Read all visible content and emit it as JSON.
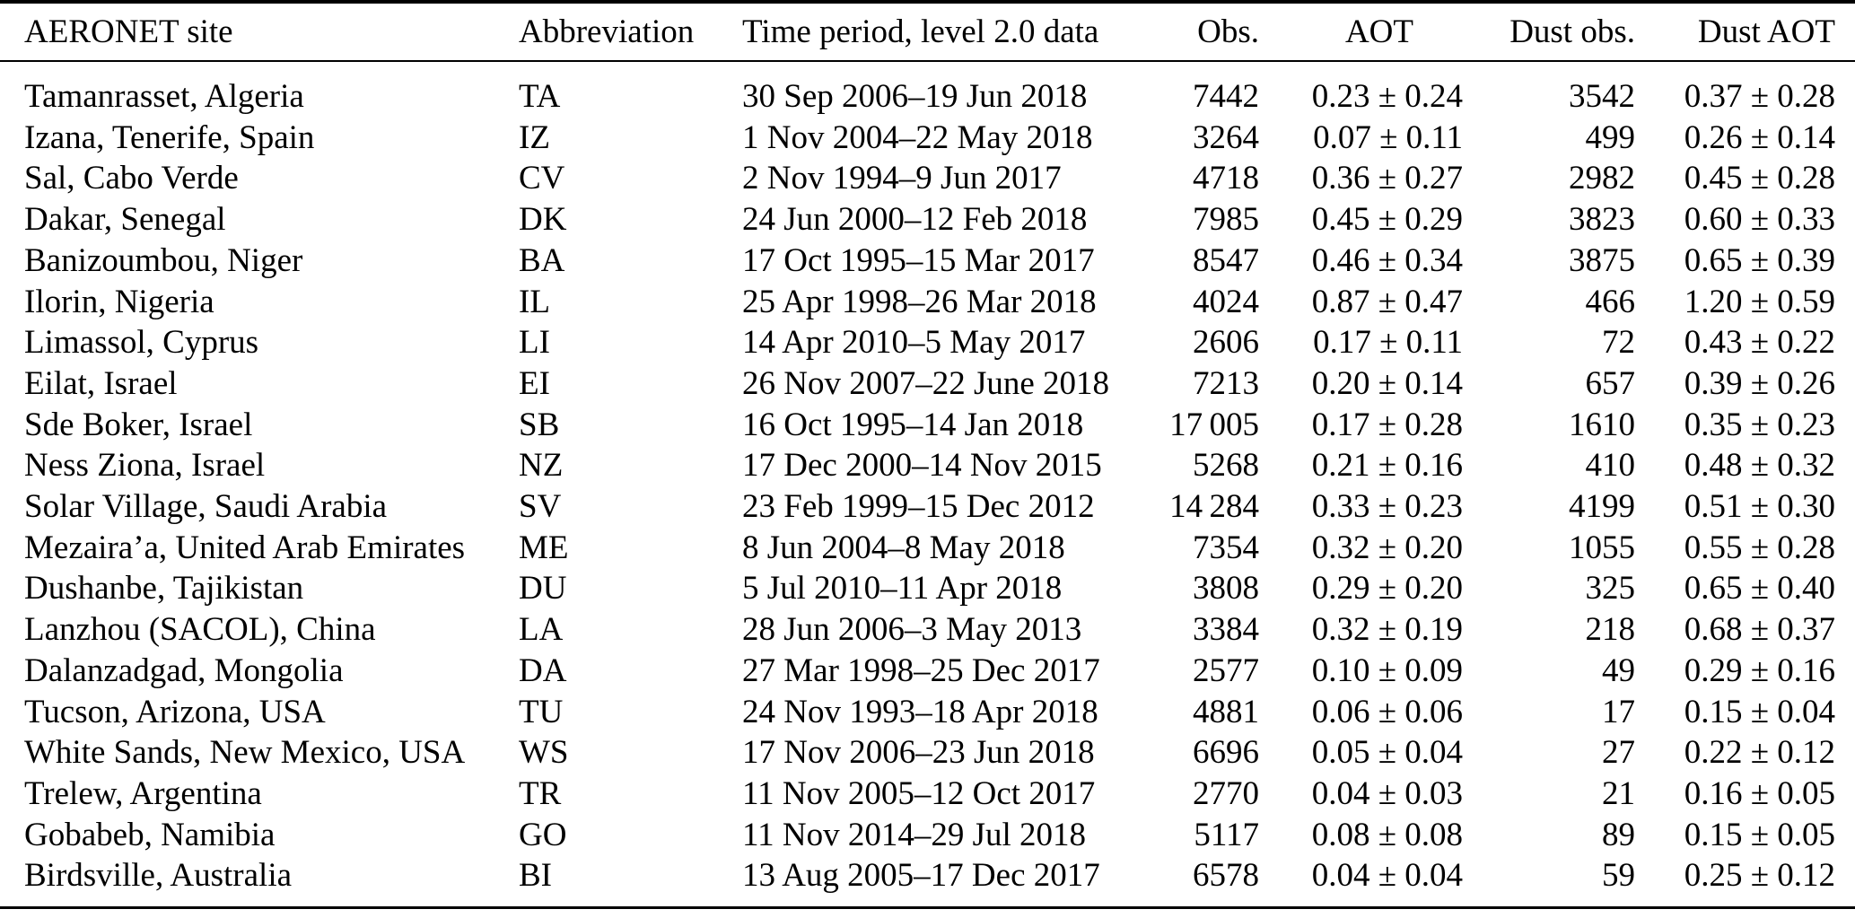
{
  "table": {
    "columns": [
      {
        "key": "site",
        "label": "AERONET site"
      },
      {
        "key": "abbreviation",
        "label": "Abbreviation"
      },
      {
        "key": "time-period",
        "label": "Time period, level 2.0 data"
      },
      {
        "key": "obs",
        "label": "Obs."
      },
      {
        "key": "aot",
        "label": "AOT"
      },
      {
        "key": "dust-obs",
        "label": "Dust obs."
      },
      {
        "key": "dust-aot",
        "label": "Dust AOT"
      }
    ],
    "rows": [
      [
        "Tamanrasset, Algeria",
        "TA",
        "30 Sep 2006–19 Jun 2018",
        "7442",
        "0.23 ± 0.24",
        "3542",
        "0.37 ± 0.28"
      ],
      [
        "Izana, Tenerife, Spain",
        "IZ",
        "1 Nov 2004–22 May 2018",
        "3264",
        "0.07 ± 0.11",
        "499",
        "0.26 ± 0.14"
      ],
      [
        "Sal, Cabo Verde",
        "CV",
        "2 Nov 1994–9 Jun 2017",
        "4718",
        "0.36 ± 0.27",
        "2982",
        "0.45 ± 0.28"
      ],
      [
        "Dakar, Senegal",
        "DK",
        "24 Jun 2000–12 Feb 2018",
        "7985",
        "0.45 ± 0.29",
        "3823",
        "0.60 ± 0.33"
      ],
      [
        "Banizoumbou, Niger",
        "BA",
        "17 Oct 1995–15 Mar 2017",
        "8547",
        "0.46 ± 0.34",
        "3875",
        "0.65 ± 0.39"
      ],
      [
        "Ilorin, Nigeria",
        "IL",
        "25 Apr 1998–26 Mar 2018",
        "4024",
        "0.87 ± 0.47",
        "466",
        "1.20 ± 0.59"
      ],
      [
        "Limassol, Cyprus",
        "LI",
        "14 Apr 2010–5 May 2017",
        "2606",
        "0.17 ± 0.11",
        "72",
        "0.43 ± 0.22"
      ],
      [
        "Eilat, Israel",
        "EI",
        "26 Nov 2007–22 June 2018",
        "7213",
        "0.20 ± 0.14",
        "657",
        "0.39 ± 0.26"
      ],
      [
        "Sde Boker, Israel",
        "SB",
        "16 Oct 1995–14 Jan 2018",
        "17 005",
        "0.17 ± 0.28",
        "1610",
        "0.35 ± 0.23"
      ],
      [
        "Ness Ziona, Israel",
        "NZ",
        "17 Dec 2000–14 Nov 2015",
        "5268",
        "0.21 ± 0.16",
        "410",
        "0.48 ± 0.32"
      ],
      [
        "Solar Village, Saudi Arabia",
        "SV",
        "23 Feb 1999–15 Dec 2012",
        "14 284",
        "0.33 ± 0.23",
        "4199",
        "0.51 ± 0.30"
      ],
      [
        "Mezaira’a, United Arab Emirates",
        "ME",
        "8 Jun 2004–8 May 2018",
        "7354",
        "0.32 ± 0.20",
        "1055",
        "0.55 ± 0.28"
      ],
      [
        "Dushanbe, Tajikistan",
        "DU",
        "5 Jul 2010–11 Apr 2018",
        "3808",
        "0.29 ± 0.20",
        "325",
        "0.65 ± 0.40"
      ],
      [
        "Lanzhou (SACOL), China",
        "LA",
        "28 Jun 2006–3 May 2013",
        "3384",
        "0.32 ± 0.19",
        "218",
        "0.68 ± 0.37"
      ],
      [
        "Dalanzadgad, Mongolia",
        "DA",
        "27 Mar 1998–25 Dec 2017",
        "2577",
        "0.10 ± 0.09",
        "49",
        "0.29 ± 0.16"
      ],
      [
        "Tucson, Arizona, USA",
        "TU",
        "24 Nov 1993–18 Apr 2018",
        "4881",
        "0.06 ± 0.06",
        "17",
        "0.15 ± 0.04"
      ],
      [
        "White Sands, New Mexico, USA",
        "WS",
        "17 Nov 2006–23 Jun 2018",
        "6696",
        "0.05 ± 0.04",
        "27",
        "0.22 ± 0.12"
      ],
      [
        "Trelew, Argentina",
        "TR",
        "11 Nov 2005–12 Oct 2017",
        "2770",
        "0.04 ± 0.03",
        "21",
        "0.16 ± 0.05"
      ],
      [
        "Gobabeb, Namibia",
        "GO",
        "11 Nov 2014–29 Jul 2018",
        "5117",
        "0.08 ± 0.08",
        "89",
        "0.15 ± 0.05"
      ],
      [
        "Birdsville, Australia",
        "BI",
        "13 Aug 2005–17 Dec 2017",
        "6578",
        "0.04 ± 0.04",
        "59",
        "0.25 ± 0.12"
      ]
    ]
  }
}
